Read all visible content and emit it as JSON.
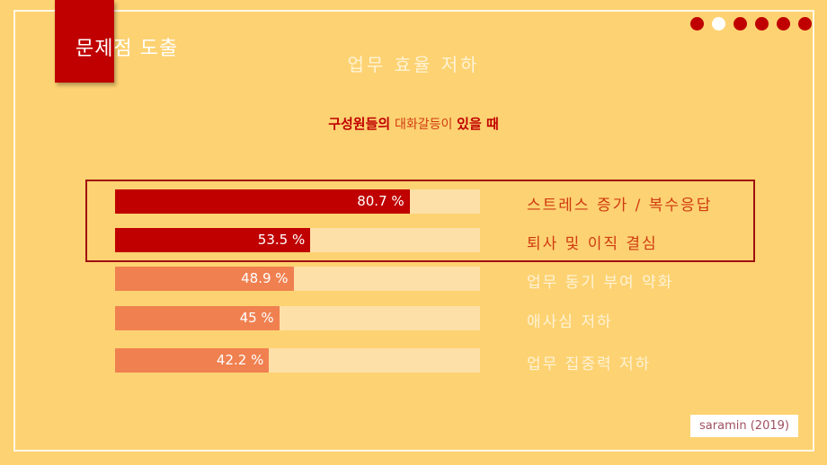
{
  "section_title": "문제점 도출",
  "slide_title": "업무 효율 저하",
  "pagination": {
    "total": 6,
    "active_index": 1
  },
  "subtitle": {
    "part1": "구성원들의",
    "part2": "대화갈등이",
    "part3": "있을 때"
  },
  "colors": {
    "background": "#fdd272",
    "accent": "#c00000",
    "secondary_bar": "#f08050",
    "track": "#fde0a8",
    "highlight_label": "#d03a10",
    "dim_label": "#fff3d6"
  },
  "chart_data": {
    "type": "bar",
    "orientation": "horizontal",
    "categories": [
      "스트레스 증가 / 복수응답",
      "퇴사 및 이직 결심",
      "업무 동기 부여 약화",
      "애사심 저하",
      "업무 집중력 저하"
    ],
    "values": [
      80.7,
      53.5,
      48.9,
      45,
      42.2
    ],
    "value_labels": [
      "80.7 %",
      "53.5 %",
      "48.9 %",
      "45 %",
      "42.2 %"
    ],
    "highlighted": [
      true,
      true,
      false,
      false,
      false
    ],
    "xlim": [
      0,
      100
    ],
    "grid": false
  },
  "source": "saramin (2019)"
}
